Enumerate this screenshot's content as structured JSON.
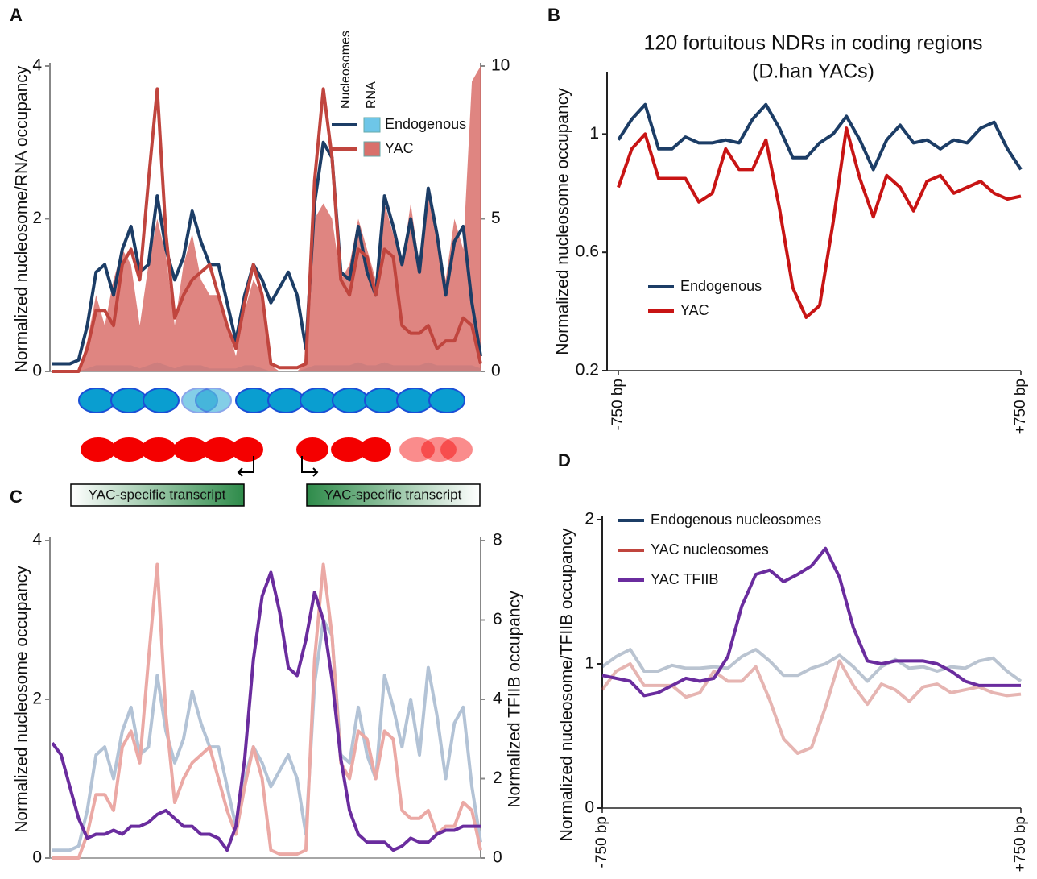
{
  "chart_data": [
    {
      "type": "line",
      "panel": "A",
      "ylabel": "Normalized nucleosome/RNA occupancy",
      "ylim": [
        0,
        4
      ],
      "yticks": [
        0,
        2,
        4
      ],
      "y2lim": [
        0,
        10
      ],
      "y2ticks": [
        0,
        5,
        10
      ],
      "legend_headers": [
        "Nucleosomes",
        "RNA"
      ],
      "series": [
        {
          "name": "Endogenous",
          "color": "#1c3d66",
          "values": [
            0.1,
            0.1,
            0.1,
            0.15,
            0.6,
            1.3,
            1.4,
            1.0,
            1.6,
            1.9,
            1.3,
            1.4,
            2.3,
            1.6,
            1.2,
            1.5,
            2.1,
            1.7,
            1.4,
            1.4,
            0.9,
            0.4,
            1.0,
            1.4,
            1.2,
            0.9,
            1.1,
            1.3,
            1.0,
            0.3,
            2.2,
            3.0,
            2.8,
            1.3,
            1.2,
            1.9,
            1.3,
            1.0,
            2.3,
            1.9,
            1.4,
            2.0,
            1.3,
            2.4,
            1.8,
            1.0,
            1.7,
            1.9,
            0.9,
            0.2
          ]
        },
        {
          "name": "YAC",
          "color": "#c0453e",
          "values": [
            0,
            0,
            0,
            0,
            0.3,
            0.8,
            0.8,
            0.6,
            1.4,
            1.6,
            1.2,
            2.5,
            3.7,
            1.8,
            0.7,
            1.0,
            1.2,
            1.3,
            1.4,
            1.0,
            0.6,
            0.3,
            0.9,
            1.4,
            1.0,
            0.1,
            0.05,
            0.05,
            0.05,
            0.1,
            2.5,
            3.7,
            2.8,
            1.2,
            1.0,
            1.6,
            1.5,
            1.0,
            1.6,
            1.5,
            0.6,
            0.5,
            0.5,
            0.6,
            0.3,
            0.4,
            0.4,
            0.7,
            0.6,
            0.1
          ]
        }
      ],
      "rna_series": [
        {
          "color": "#6ec6e8",
          "axis": "y2",
          "values": [
            0,
            0,
            0,
            0,
            0.1,
            0.2,
            0.2,
            0.2,
            0.2,
            0.2,
            0.1,
            0.2,
            0.3,
            0.2,
            0.1,
            0.2,
            0.2,
            0.2,
            0.1,
            0.1,
            0.1,
            0.1,
            0.2,
            0.2,
            0.1,
            0,
            0,
            0,
            0,
            0.1,
            0.2,
            0.2,
            0.2,
            0.2,
            0.2,
            0.3,
            0.2,
            0.2,
            0.3,
            0.2,
            0.2,
            0.2,
            0.2,
            0.3,
            0.2,
            0.2,
            0.2,
            0.2,
            0.2,
            0.1
          ]
        },
        {
          "color": "#d9706b",
          "axis": "y2",
          "values": [
            0,
            0,
            0,
            0,
            1,
            2.5,
            1.5,
            3.0,
            4.0,
            3.5,
            1.5,
            3.5,
            5.0,
            3.8,
            1.5,
            3.5,
            4.5,
            3.0,
            2.5,
            2.5,
            1.5,
            0.5,
            2.0,
            3.0,
            2.5,
            0.2,
            0,
            0,
            0,
            0.3,
            5.0,
            5.5,
            5.0,
            3.0,
            3.5,
            5.0,
            4.0,
            3.0,
            5.5,
            4.5,
            3.5,
            5.5,
            3.5,
            6.0,
            4.5,
            3.0,
            5.0,
            4.0,
            9.5,
            10.0
          ]
        }
      ]
    },
    {
      "type": "line",
      "panel": "B",
      "title": "120 fortuitous NDRs in coding regions",
      "subtitle": "(D.han YACs)",
      "ylabel": "Normalized nucleosome occupancy",
      "ylim": [
        0.2,
        1.2
      ],
      "yticks": [
        0.2,
        0.6,
        1
      ],
      "xlim": [
        -750,
        750
      ],
      "xticks": [
        {
          "value": -750,
          "label": "-750 bp"
        },
        {
          "value": 750,
          "label": "+750 bp"
        }
      ],
      "x": [
        -750,
        -700,
        -650,
        -600,
        -550,
        -500,
        -450,
        -400,
        -350,
        -300,
        -250,
        -200,
        -150,
        -100,
        -50,
        0,
        50,
        100,
        150,
        200,
        250,
        300,
        350,
        400,
        450,
        500,
        550,
        600,
        650,
        700,
        750
      ],
      "series": [
        {
          "name": "Endogenous",
          "color": "#1c3d66",
          "values": [
            0.98,
            1.05,
            1.1,
            0.95,
            0.95,
            0.99,
            0.97,
            0.97,
            0.98,
            0.97,
            1.05,
            1.1,
            1.02,
            0.92,
            0.92,
            0.97,
            1.0,
            1.06,
            0.98,
            0.88,
            0.98,
            1.03,
            0.97,
            0.98,
            0.95,
            0.98,
            0.97,
            1.02,
            1.04,
            0.95,
            0.88
          ]
        },
        {
          "name": "YAC",
          "color": "#c81414",
          "values": [
            0.82,
            0.95,
            1.0,
            0.85,
            0.85,
            0.85,
            0.77,
            0.8,
            0.95,
            0.88,
            0.88,
            0.98,
            0.75,
            0.48,
            0.38,
            0.42,
            0.7,
            1.02,
            0.85,
            0.72,
            0.86,
            0.82,
            0.74,
            0.84,
            0.86,
            0.8,
            0.82,
            0.84,
            0.8,
            0.78,
            0.79
          ]
        }
      ]
    },
    {
      "type": "line",
      "panel": "C",
      "ylabel": "Normalized nucleosome occupancy",
      "y2label": "Normalized TFIIB occupancy",
      "ylim": [
        0,
        4
      ],
      "yticks": [
        0,
        2,
        4
      ],
      "y2lim": [
        0,
        8
      ],
      "y2ticks": [
        0,
        2,
        4,
        6,
        8
      ],
      "series": [
        {
          "color": "#b3c3d6",
          "values": [
            0.1,
            0.1,
            0.1,
            0.15,
            0.6,
            1.3,
            1.4,
            1.0,
            1.6,
            1.9,
            1.3,
            1.4,
            2.3,
            1.6,
            1.2,
            1.5,
            2.1,
            1.7,
            1.4,
            1.4,
            0.9,
            0.4,
            1.0,
            1.4,
            1.2,
            0.9,
            1.1,
            1.3,
            1.0,
            0.3,
            2.2,
            3.0,
            2.8,
            1.3,
            1.2,
            1.9,
            1.3,
            1.0,
            2.3,
            1.9,
            1.4,
            2.0,
            1.3,
            2.4,
            1.8,
            1.0,
            1.7,
            1.9,
            0.9,
            0.2
          ]
        },
        {
          "color": "#eba9a5",
          "values": [
            0,
            0,
            0,
            0,
            0.3,
            0.8,
            0.8,
            0.6,
            1.4,
            1.6,
            1.2,
            2.5,
            3.7,
            1.8,
            0.7,
            1.0,
            1.2,
            1.3,
            1.4,
            1.0,
            0.6,
            0.3,
            0.9,
            1.4,
            1.0,
            0.1,
            0.05,
            0.05,
            0.05,
            0.1,
            2.5,
            3.7,
            2.8,
            1.2,
            1.0,
            1.6,
            1.5,
            1.0,
            1.6,
            1.5,
            0.6,
            0.5,
            0.5,
            0.6,
            0.3,
            0.4,
            0.4,
            0.7,
            0.6,
            0.1
          ]
        },
        {
          "color": "#6a2c9e",
          "axis": "y2",
          "values": [
            2.9,
            2.6,
            1.8,
            1.0,
            0.5,
            0.6,
            0.6,
            0.7,
            0.6,
            0.8,
            0.8,
            0.9,
            1.1,
            1.2,
            1.0,
            0.8,
            0.8,
            0.6,
            0.6,
            0.5,
            0.2,
            0.8,
            2.5,
            5.0,
            6.6,
            7.2,
            6.2,
            4.8,
            4.6,
            5.5,
            6.7,
            6.0,
            4.5,
            2.5,
            1.2,
            0.6,
            0.4,
            0.4,
            0.4,
            0.2,
            0.3,
            0.5,
            0.4,
            0.4,
            0.6,
            0.7,
            0.7,
            0.8,
            0.8,
            0.8
          ]
        }
      ]
    },
    {
      "type": "line",
      "panel": "D",
      "ylabel": "Normalized nucleosome/TFIIB occupancy",
      "ylim": [
        0,
        2
      ],
      "yticks": [
        0,
        1,
        2
      ],
      "xlim": [
        -750,
        750
      ],
      "xticks": [
        {
          "value": -750,
          "label": "-750 bp"
        },
        {
          "value": 750,
          "label": "+750 bp"
        }
      ],
      "x": [
        -750,
        -700,
        -650,
        -600,
        -550,
        -500,
        -450,
        -400,
        -350,
        -300,
        -250,
        -200,
        -150,
        -100,
        -50,
        0,
        50,
        100,
        150,
        200,
        250,
        300,
        350,
        400,
        450,
        500,
        550,
        600,
        650,
        700,
        750
      ],
      "series": [
        {
          "name": "Endogenous nucleosomes",
          "color": "#1c3d66",
          "opacity": 0.3,
          "values": [
            0.98,
            1.05,
            1.1,
            0.95,
            0.95,
            0.99,
            0.97,
            0.97,
            0.98,
            0.97,
            1.05,
            1.1,
            1.02,
            0.92,
            0.92,
            0.97,
            1.0,
            1.06,
            0.98,
            0.88,
            0.98,
            1.03,
            0.97,
            0.98,
            0.95,
            0.98,
            0.97,
            1.02,
            1.04,
            0.95,
            0.88
          ]
        },
        {
          "name": "YAC nucleosomes",
          "color": "#c0453e",
          "opacity": 0.4,
          "values": [
            0.82,
            0.95,
            1.0,
            0.85,
            0.85,
            0.85,
            0.77,
            0.8,
            0.95,
            0.88,
            0.88,
            0.98,
            0.75,
            0.48,
            0.38,
            0.42,
            0.7,
            1.02,
            0.85,
            0.72,
            0.86,
            0.82,
            0.74,
            0.84,
            0.86,
            0.8,
            0.82,
            0.84,
            0.8,
            0.78,
            0.79
          ]
        },
        {
          "name": "YAC TFIIB",
          "color": "#6a2c9e",
          "opacity": 1,
          "values": [
            0.92,
            0.9,
            0.88,
            0.78,
            0.8,
            0.85,
            0.9,
            0.88,
            0.9,
            1.05,
            1.4,
            1.62,
            1.65,
            1.57,
            1.62,
            1.68,
            1.8,
            1.6,
            1.25,
            1.02,
            1.0,
            1.02,
            1.02,
            1.02,
            1.0,
            0.95,
            0.88,
            0.85,
            0.85,
            0.85,
            0.85
          ]
        }
      ]
    }
  ],
  "diagram": {
    "transcripts": [
      "YAC-specific transcript",
      "YAC-specific transcript"
    ]
  }
}
